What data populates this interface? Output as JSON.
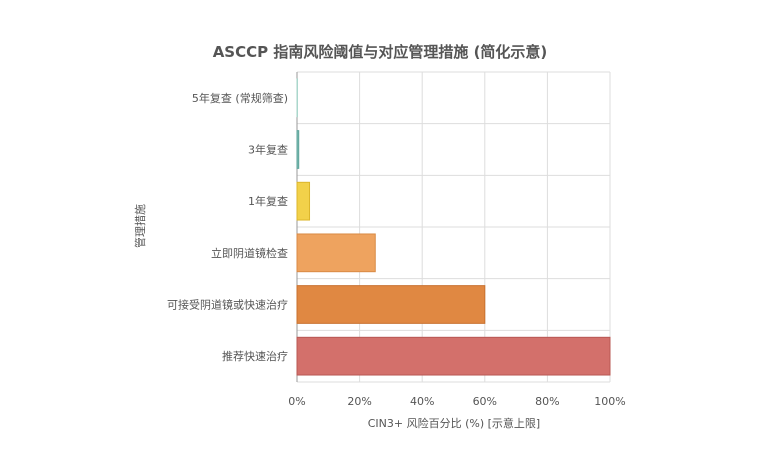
{
  "chart_data": {
    "type": "bar",
    "orientation": "horizontal",
    "title": "ASCCP 指南风险阈值与对应管理措施 (简化示意)",
    "xlabel": "CIN3+ 风险百分比 (%) [示意上限]",
    "ylabel": "管理措施",
    "xlim": [
      0,
      100
    ],
    "xticks": [
      0,
      20,
      40,
      60,
      80,
      100
    ],
    "xtick_labels": [
      "0%",
      "20%",
      "40%",
      "60%",
      "80%",
      "100%"
    ],
    "grid": true,
    "categories": [
      "5年复查 (常规筛查)",
      "3年复查",
      "1年复查",
      "立即阴道镜检查",
      "可接受阴道镜或快速治疗",
      "推荐快速治疗"
    ],
    "values": [
      0.15,
      0.55,
      4,
      25,
      60,
      100
    ],
    "colors": [
      "#c5e6dd",
      "#7fbfb6",
      "#f2d14a",
      "#eea35f",
      "#e08842",
      "#d3706b"
    ],
    "border_colors": [
      "#a8d6ca",
      "#5ea39a",
      "#dcb62c",
      "#d98a45",
      "#c9712e",
      "#b85853"
    ]
  }
}
